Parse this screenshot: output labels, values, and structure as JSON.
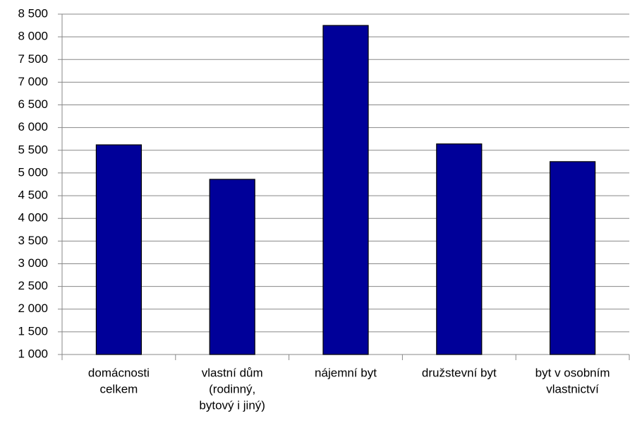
{
  "chart_data": {
    "type": "bar",
    "categories": [
      [
        "domácnosti",
        "celkem"
      ],
      [
        "vlastní  dům",
        "(rodinný,",
        "bytový i jiný)"
      ],
      [
        "nájemní byt"
      ],
      [
        "družstevní byt"
      ],
      [
        "byt v osobním",
        "vlastnictví"
      ]
    ],
    "values": [
      5620,
      4860,
      8250,
      5640,
      5250
    ],
    "color": "#000099",
    "ylim": [
      1000,
      8500
    ],
    "yticks": [
      {
        "value": 1000,
        "label": "1 000"
      },
      {
        "value": 1500,
        "label": "1 500"
      },
      {
        "value": 2000,
        "label": "2 000"
      },
      {
        "value": 2500,
        "label": "2 500"
      },
      {
        "value": 3000,
        "label": "3 000"
      },
      {
        "value": 3500,
        "label": "3 500"
      },
      {
        "value": 4000,
        "label": "4 000"
      },
      {
        "value": 4500,
        "label": "4 500"
      },
      {
        "value": 5000,
        "label": "5 000"
      },
      {
        "value": 5500,
        "label": "5 500"
      },
      {
        "value": 6000,
        "label": "6 000"
      },
      {
        "value": 6500,
        "label": "6 500"
      },
      {
        "value": 7000,
        "label": "7 000"
      },
      {
        "value": 7500,
        "label": "7 500"
      },
      {
        "value": 8000,
        "label": "8 000"
      },
      {
        "value": 8500,
        "label": "8 500"
      }
    ],
    "grid": true
  }
}
